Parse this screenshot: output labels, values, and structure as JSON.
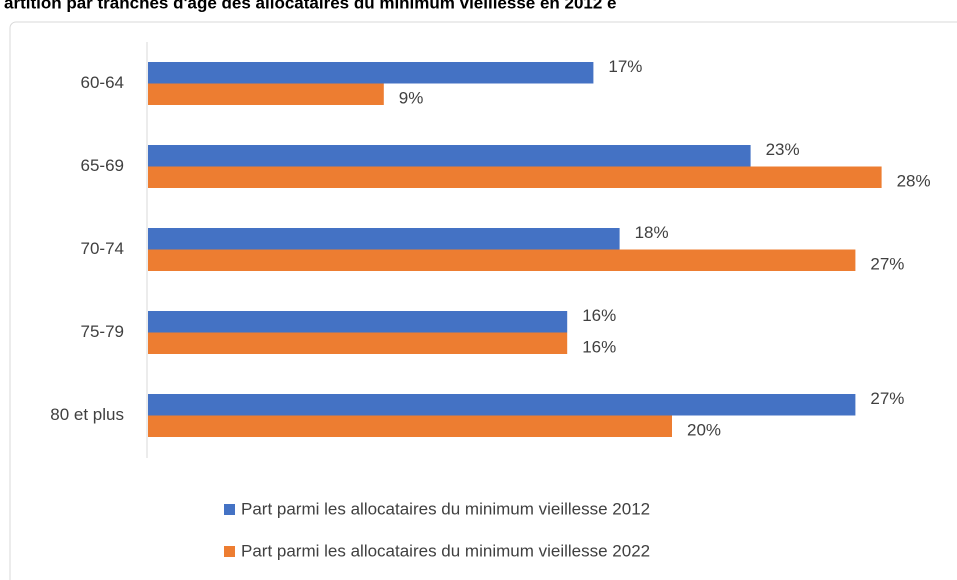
{
  "chart_data": {
    "type": "bar",
    "orientation": "horizontal",
    "title": "artition par tranches d'âge des allocataires du minimum vieillesse en 2012 e",
    "categories": [
      "60-64",
      "65-69",
      "70-74",
      "75-79",
      "80 et plus"
    ],
    "series": [
      {
        "name": "Part parmi les allocataires du minimum vieillesse 2012",
        "color": "#4472c4",
        "values": [
          17,
          23,
          18,
          16,
          27
        ],
        "value_labels": [
          "17%",
          "23%",
          "18%",
          "16%",
          "27%"
        ]
      },
      {
        "name": "Part parmi les allocataires du minimum vieillesse 2022",
        "color": "#ed7d31",
        "values": [
          9,
          28,
          27,
          16,
          20
        ],
        "value_labels": [
          "9%",
          "28%",
          "27%",
          "16%",
          "20%"
        ]
      }
    ],
    "legend": "bottom"
  }
}
